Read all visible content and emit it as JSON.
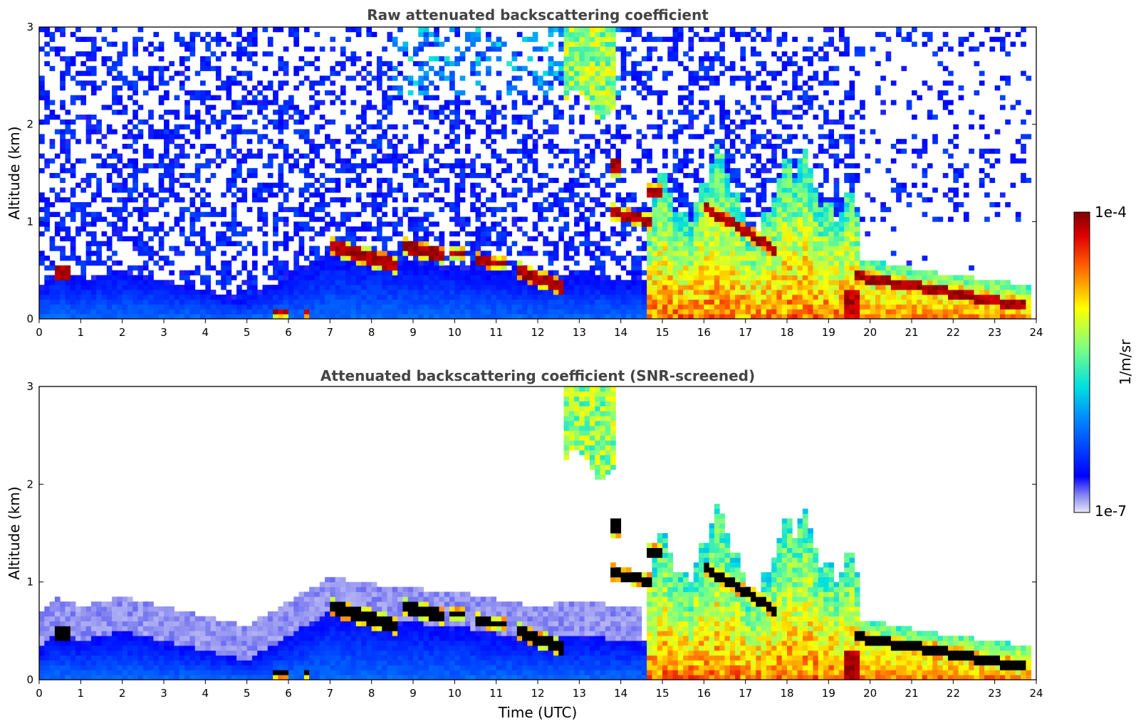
{
  "chart_data": [
    {
      "type": "heatmap",
      "title": "Raw attenuated backscattering coefficient",
      "xlabel": "",
      "ylabel": "Altitude (km)",
      "xlim": [
        0,
        24
      ],
      "ylim": [
        0,
        3
      ],
      "xticks": [
        0,
        1,
        2,
        3,
        4,
        5,
        6,
        7,
        8,
        9,
        10,
        11,
        12,
        13,
        14,
        15,
        16,
        17,
        18,
        19,
        20,
        21,
        22,
        23,
        24
      ],
      "yticks": [
        0,
        1,
        2,
        3
      ],
      "screened": false
    },
    {
      "type": "heatmap",
      "title": "Attenuated backscattering coefficient (SNR-screened)",
      "xlabel": "Time (UTC)",
      "ylabel": "Altitude (km)",
      "xlim": [
        0,
        24
      ],
      "ylim": [
        0,
        3
      ],
      "xticks": [
        0,
        1,
        2,
        3,
        4,
        5,
        6,
        7,
        8,
        9,
        10,
        11,
        12,
        13,
        14,
        15,
        16,
        17,
        18,
        19,
        20,
        21,
        22,
        23,
        24
      ],
      "yticks": [
        0,
        1,
        2,
        3
      ],
      "screened": true
    }
  ],
  "colorbar": {
    "label": "1/m/sr",
    "max_label": "1e-4",
    "min_label": "1e-7",
    "colormap": "jet"
  },
  "features": {
    "pbl_top": [
      [
        0,
        0.3
      ],
      [
        0.4,
        0.5
      ],
      [
        1,
        0.4
      ],
      [
        2,
        0.5
      ],
      [
        5,
        0.2
      ],
      [
        7,
        0.7
      ],
      [
        8.5,
        0.6
      ],
      [
        10,
        0.55
      ],
      [
        12,
        0.4
      ],
      [
        12.8,
        0.45
      ],
      [
        14.5,
        0.4
      ],
      [
        15,
        0.3
      ],
      [
        16,
        0.5
      ],
      [
        18,
        0.6
      ],
      [
        19.5,
        0.5
      ],
      [
        20,
        0.45
      ],
      [
        22,
        0.3
      ],
      [
        23.8,
        0.2
      ]
    ],
    "cloud_layers": [
      {
        "t0": 0.35,
        "t1": 0.7,
        "z": 0.48,
        "h": 0.12
      },
      {
        "t0": 5.6,
        "t1": 6.0,
        "z": 0.07,
        "h": 0.04
      },
      {
        "t0": 6.35,
        "t1": 6.55,
        "z": 0.07,
        "h": 0.04
      },
      {
        "t0": 7.0,
        "t1": 8.6,
        "z": 0.75,
        "z1": 0.55,
        "h": 0.13
      },
      {
        "t0": 8.8,
        "t1": 9.7,
        "z": 0.74,
        "z1": 0.66,
        "h": 0.12
      },
      {
        "t0": 9.9,
        "t1": 10.3,
        "z": 0.69,
        "z1": 0.66,
        "h": 0.07
      },
      {
        "t0": 10.5,
        "t1": 11.2,
        "z": 0.61,
        "z1": 0.57,
        "h": 0.08
      },
      {
        "t0": 11.5,
        "t1": 12.6,
        "z": 0.5,
        "z1": 0.32,
        "h": 0.12
      },
      {
        "t0": 13.7,
        "t1": 14.0,
        "z": 1.55,
        "h": 0.15
      },
      {
        "t0": 13.8,
        "t1": 14.7,
        "z": 1.1,
        "z1": 1.0,
        "h": 0.1
      },
      {
        "t0": 14.6,
        "t1": 15.0,
        "z": 1.32,
        "h": 0.1
      },
      {
        "t0": 16.0,
        "t1": 17.7,
        "z": 1.15,
        "z1": 0.72,
        "h": 0.1
      },
      {
        "t0": 19.6,
        "t1": 23.8,
        "z": 0.45,
        "z1": 0.12,
        "h": 0.1
      }
    ],
    "high_cloud": {
      "t0": 12.6,
      "t1": 13.9,
      "z0": 2.2,
      "z1": 3.0
    },
    "convective_plumes": [
      [
        15.0,
        1.6
      ],
      [
        15.5,
        1.2
      ],
      [
        16.0,
        1.5
      ],
      [
        16.35,
        1.85
      ],
      [
        16.8,
        1.3
      ],
      [
        17.5,
        1.2
      ],
      [
        18.0,
        1.75
      ],
      [
        18.4,
        1.8
      ],
      [
        19.0,
        1.3
      ],
      [
        19.5,
        1.4
      ]
    ]
  }
}
